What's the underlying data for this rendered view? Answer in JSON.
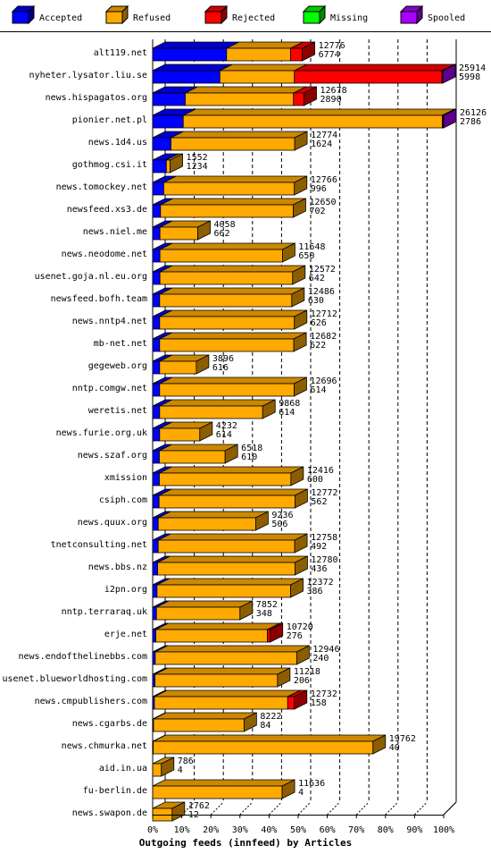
{
  "chart_data": {
    "type": "bar",
    "orientation": "horizontal",
    "stacked": true,
    "percent_stacked": true,
    "xlabel": "Outgoing feeds (innfeed) by Articles",
    "x_ticks": [
      "0%",
      "10%",
      "20%",
      "30%",
      "40%",
      "50%",
      "60%",
      "70%",
      "80%",
      "90%",
      "100%"
    ],
    "xlim": [
      0,
      100
    ],
    "grid": "vertical dashed",
    "legend_position": "top",
    "series": [
      {
        "name": "Accepted",
        "color": "#0000ff"
      },
      {
        "name": "Refused",
        "color": "#ffaa00"
      },
      {
        "name": "Rejected",
        "color": "#ff0000"
      },
      {
        "name": "Missing",
        "color": "#00ff00"
      },
      {
        "name": "Spooled",
        "color": "#aa00ff"
      }
    ],
    "rows": [
      {
        "name": "alt119.net",
        "offered": "12776",
        "accepted": "6774",
        "pct": [
          25.4,
          22.0,
          4.0,
          0,
          0
        ]
      },
      {
        "name": "nyheter.lysator.liu.se",
        "offered": "25914",
        "accepted": "5998",
        "pct": [
          23.1,
          25.6,
          50.7,
          0,
          0.3
        ]
      },
      {
        "name": "news.hispagatos.org",
        "offered": "12678",
        "accepted": "2890",
        "pct": [
          11.2,
          37.2,
          3.6,
          0,
          0
        ]
      },
      {
        "name": "pionier.net.pl",
        "offered": "26126",
        "accepted": "2786",
        "pct": [
          10.5,
          89.0,
          0.3,
          0,
          0.2
        ]
      },
      {
        "name": "news.1d4.us",
        "offered": "12774",
        "accepted": "1624",
        "pct": [
          6.3,
          42.5,
          0,
          0,
          0
        ]
      },
      {
        "name": "gothmog.csi.it",
        "offered": "1552",
        "accepted": "1234",
        "pct": [
          4.7,
          1.3,
          0,
          0,
          0
        ]
      },
      {
        "name": "news.tomockey.net",
        "offered": "12766",
        "accepted": "996",
        "pct": [
          3.8,
          44.9,
          0,
          0,
          0
        ]
      },
      {
        "name": "newsfeed.xs3.de",
        "offered": "12650",
        "accepted": "702",
        "pct": [
          2.7,
          45.6,
          0,
          0,
          0
        ]
      },
      {
        "name": "news.niel.me",
        "offered": "4058",
        "accepted": "662",
        "pct": [
          2.5,
          13.0,
          0,
          0,
          0
        ]
      },
      {
        "name": "news.neodome.net",
        "offered": "11648",
        "accepted": "650",
        "pct": [
          2.5,
          42.1,
          0,
          0,
          0
        ]
      },
      {
        "name": "usenet.goja.nl.eu.org",
        "offered": "12572",
        "accepted": "642",
        "pct": [
          2.5,
          45.6,
          0,
          0,
          0
        ]
      },
      {
        "name": "newsfeed.bofh.team",
        "offered": "12486",
        "accepted": "630",
        "pct": [
          2.4,
          45.4,
          0,
          0,
          0
        ]
      },
      {
        "name": "news.nntp4.net",
        "offered": "12712",
        "accepted": "626",
        "pct": [
          2.4,
          46.3,
          0,
          0,
          0
        ]
      },
      {
        "name": "mb-net.net",
        "offered": "12682",
        "accepted": "622",
        "pct": [
          2.4,
          46.1,
          0,
          0,
          0
        ]
      },
      {
        "name": "gegeweb.org",
        "offered": "3896",
        "accepted": "616",
        "pct": [
          2.4,
          12.6,
          0,
          0,
          0
        ]
      },
      {
        "name": "nntp.comgw.net",
        "offered": "12696",
        "accepted": "614",
        "pct": [
          2.4,
          46.2,
          0,
          0,
          0
        ]
      },
      {
        "name": "weretis.net",
        "offered": "9868",
        "accepted": "614",
        "pct": [
          2.4,
          35.4,
          0,
          0,
          0
        ]
      },
      {
        "name": "news.furie.org.uk",
        "offered": "4232",
        "accepted": "614",
        "pct": [
          2.4,
          13.8,
          0,
          0,
          0
        ]
      },
      {
        "name": "news.szaf.org",
        "offered": "6518",
        "accepted": "610",
        "pct": [
          2.3,
          22.6,
          0,
          0,
          0
        ]
      },
      {
        "name": "xmission",
        "offered": "12416",
        "accepted": "600",
        "pct": [
          2.3,
          45.2,
          0,
          0,
          0
        ]
      },
      {
        "name": "csiph.com",
        "offered": "12772",
        "accepted": "562",
        "pct": [
          2.2,
          46.7,
          0,
          0,
          0
        ]
      },
      {
        "name": "news.quux.org",
        "offered": "9236",
        "accepted": "506",
        "pct": [
          1.9,
          33.5,
          0,
          0,
          0
        ]
      },
      {
        "name": "tnetconsulting.net",
        "offered": "12758",
        "accepted": "492",
        "pct": [
          1.9,
          46.9,
          0,
          0,
          0
        ]
      },
      {
        "name": "news.bbs.nz",
        "offered": "12780",
        "accepted": "436",
        "pct": [
          1.7,
          47.2,
          0,
          0,
          0
        ]
      },
      {
        "name": "i2pn.org",
        "offered": "12372",
        "accepted": "386",
        "pct": [
          1.5,
          45.9,
          0,
          0,
          0
        ]
      },
      {
        "name": "nntp.terraraq.uk",
        "offered": "7852",
        "accepted": "348",
        "pct": [
          1.3,
          28.7,
          0,
          0,
          0
        ]
      },
      {
        "name": "erje.net",
        "offered": "10720",
        "accepted": "276",
        "pct": [
          1.1,
          38.3,
          1.0,
          0,
          0
        ]
      },
      {
        "name": "news.endofthelinebbs.com",
        "offered": "12946",
        "accepted": "240",
        "pct": [
          0.9,
          48.6,
          0,
          0,
          0
        ]
      },
      {
        "name": "usenet.blueworldhosting.com",
        "offered": "11218",
        "accepted": "206",
        "pct": [
          0.8,
          42.1,
          0,
          0,
          0
        ]
      },
      {
        "name": "news.cmpublishers.com",
        "offered": "12732",
        "accepted": "158",
        "pct": [
          0.6,
          45.8,
          2.3,
          0,
          0
        ]
      },
      {
        "name": "news.cgarbs.de",
        "offered": "8222",
        "accepted": "84",
        "pct": [
          0.3,
          31.1,
          0,
          0,
          0
        ]
      },
      {
        "name": "news.chmurka.net",
        "offered": "19762",
        "accepted": "40",
        "pct": [
          0.2,
          75.5,
          0,
          0,
          0
        ]
      },
      {
        "name": "aid.in.ua",
        "offered": "786",
        "accepted": "4",
        "pct": [
          0,
          3.0,
          0,
          0,
          0
        ]
      },
      {
        "name": "fu-berlin.de",
        "offered": "11636",
        "accepted": "4",
        "pct": [
          0,
          44.5,
          0,
          0,
          0
        ]
      },
      {
        "name": "news.swapon.de",
        "offered": "1762",
        "accepted": "12",
        "pct": [
          0,
          6.7,
          0,
          0,
          0
        ]
      }
    ]
  }
}
